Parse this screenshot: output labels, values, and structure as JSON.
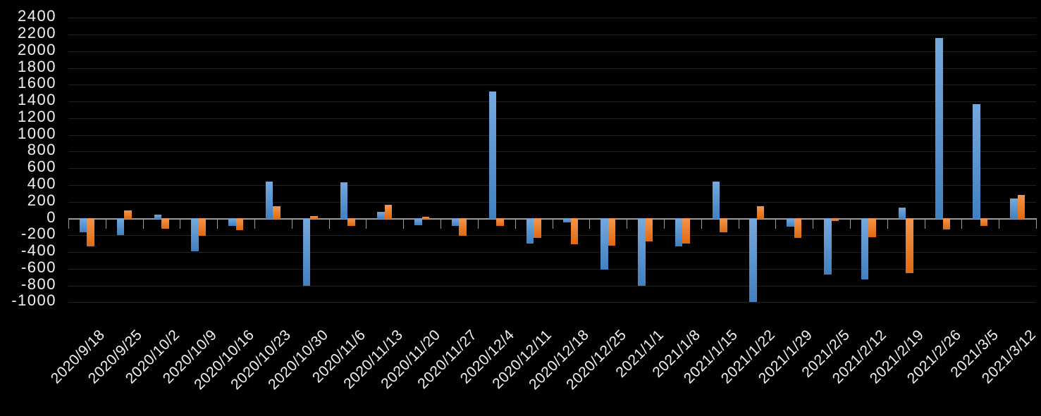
{
  "chart_data": {
    "type": "bar",
    "title": "",
    "xlabel": "",
    "ylabel": "",
    "legend_position": "none",
    "grid": true,
    "ylim": [
      -1000,
      2400
    ],
    "ytick_step": 200,
    "y_ticks": [
      2400,
      2200,
      2000,
      1800,
      1600,
      1400,
      1200,
      1000,
      800,
      600,
      400,
      200,
      0,
      -200,
      -400,
      -600,
      -800,
      -1000
    ],
    "categories": [
      "2020/9/18",
      "2020/9/25",
      "2020/10/2",
      "2020/10/9",
      "2020/10/16",
      "2020/10/23",
      "2020/10/30",
      "2020/11/6",
      "2020/11/13",
      "2020/11/20",
      "2020/11/27",
      "2020/12/4",
      "2020/12/11",
      "2020/12/18",
      "2020/12/25",
      "2021/1/1",
      "2021/1/8",
      "2021/1/15",
      "2021/1/22",
      "2021/1/29",
      "2021/2/5",
      "2021/2/12",
      "2021/2/19",
      "2021/2/26",
      "2021/3/5",
      "2021/3/12"
    ],
    "series": [
      {
        "name": "blue",
        "color": "#5B9BD5",
        "gradient_top": "#76A9DD",
        "gradient_bottom": "#4180C2",
        "values": [
          -160,
          -200,
          50,
          -390,
          -90,
          440,
          -800,
          430,
          80,
          -80,
          -90,
          1520,
          -300,
          -50,
          -610,
          -800,
          -330,
          440,
          -1000,
          -100,
          -670,
          -730,
          130,
          2160,
          1370,
          240
        ]
      },
      {
        "name": "orange",
        "color": "#ED7D31",
        "gradient_top": "#F29650",
        "gradient_bottom": "#E1690F",
        "values": [
          -330,
          100,
          -120,
          -210,
          -140,
          150,
          30,
          -90,
          160,
          20,
          -210,
          -90,
          -230,
          -310,
          -320,
          -270,
          -300,
          -160,
          150,
          -230,
          -30,
          -220,
          -650,
          -130,
          -90,
          280
        ]
      }
    ],
    "colors": {
      "background": "#000000",
      "gridline": "#212121",
      "axis": "#9C9C9C",
      "label": "#F2F2F2"
    }
  }
}
